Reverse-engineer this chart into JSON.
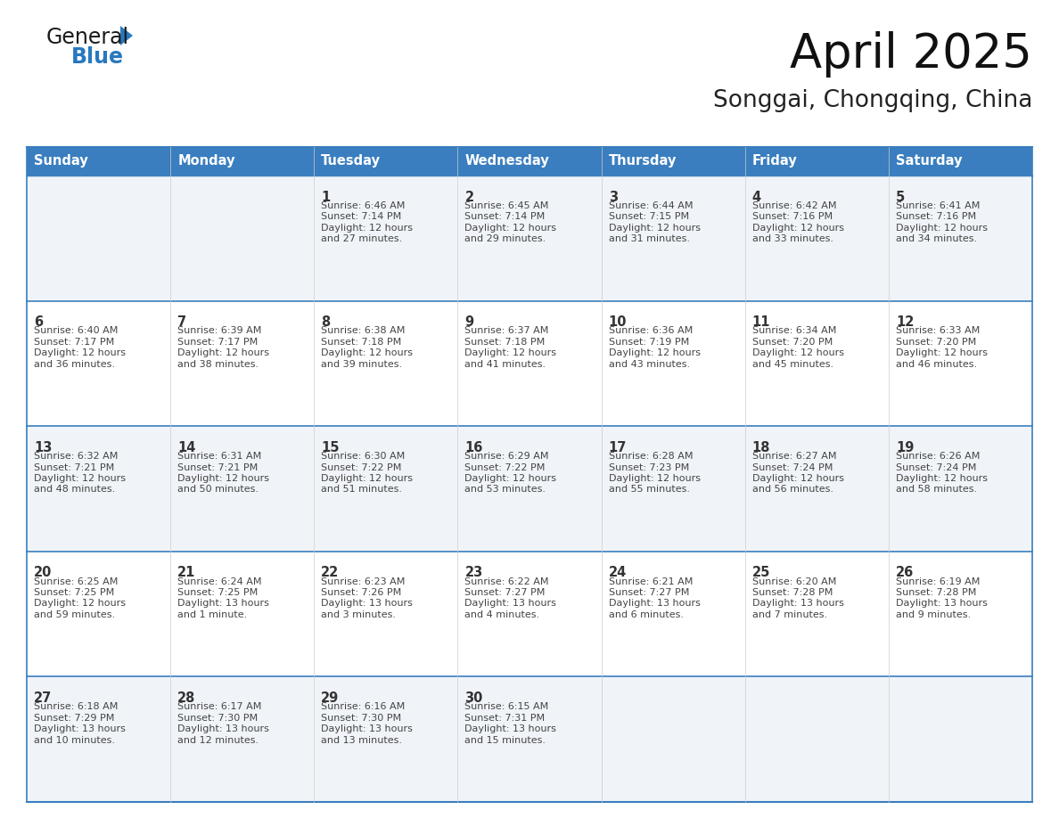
{
  "title": "April 2025",
  "subtitle": "Songgai, Chongqing, China",
  "header_bg_color": "#3a7ebf",
  "header_text_color": "#ffffff",
  "row_bg_colors": [
    "#f0f4f8",
    "#ffffff"
  ],
  "border_color": "#3a7ebf",
  "text_color": "#444444",
  "day_num_color": "#333333",
  "day_headers": [
    "Sunday",
    "Monday",
    "Tuesday",
    "Wednesday",
    "Thursday",
    "Friday",
    "Saturday"
  ],
  "cells": [
    {
      "day": null,
      "sunrise": null,
      "sunset": null,
      "daylight": null
    },
    {
      "day": null,
      "sunrise": null,
      "sunset": null,
      "daylight": null
    },
    {
      "day": 1,
      "sunrise": "6:46 AM",
      "sunset": "7:14 PM",
      "daylight": "12 hours\nand 27 minutes."
    },
    {
      "day": 2,
      "sunrise": "6:45 AM",
      "sunset": "7:14 PM",
      "daylight": "12 hours\nand 29 minutes."
    },
    {
      "day": 3,
      "sunrise": "6:44 AM",
      "sunset": "7:15 PM",
      "daylight": "12 hours\nand 31 minutes."
    },
    {
      "day": 4,
      "sunrise": "6:42 AM",
      "sunset": "7:16 PM",
      "daylight": "12 hours\nand 33 minutes."
    },
    {
      "day": 5,
      "sunrise": "6:41 AM",
      "sunset": "7:16 PM",
      "daylight": "12 hours\nand 34 minutes."
    },
    {
      "day": 6,
      "sunrise": "6:40 AM",
      "sunset": "7:17 PM",
      "daylight": "12 hours\nand 36 minutes."
    },
    {
      "day": 7,
      "sunrise": "6:39 AM",
      "sunset": "7:17 PM",
      "daylight": "12 hours\nand 38 minutes."
    },
    {
      "day": 8,
      "sunrise": "6:38 AM",
      "sunset": "7:18 PM",
      "daylight": "12 hours\nand 39 minutes."
    },
    {
      "day": 9,
      "sunrise": "6:37 AM",
      "sunset": "7:18 PM",
      "daylight": "12 hours\nand 41 minutes."
    },
    {
      "day": 10,
      "sunrise": "6:36 AM",
      "sunset": "7:19 PM",
      "daylight": "12 hours\nand 43 minutes."
    },
    {
      "day": 11,
      "sunrise": "6:34 AM",
      "sunset": "7:20 PM",
      "daylight": "12 hours\nand 45 minutes."
    },
    {
      "day": 12,
      "sunrise": "6:33 AM",
      "sunset": "7:20 PM",
      "daylight": "12 hours\nand 46 minutes."
    },
    {
      "day": 13,
      "sunrise": "6:32 AM",
      "sunset": "7:21 PM",
      "daylight": "12 hours\nand 48 minutes."
    },
    {
      "day": 14,
      "sunrise": "6:31 AM",
      "sunset": "7:21 PM",
      "daylight": "12 hours\nand 50 minutes."
    },
    {
      "day": 15,
      "sunrise": "6:30 AM",
      "sunset": "7:22 PM",
      "daylight": "12 hours\nand 51 minutes."
    },
    {
      "day": 16,
      "sunrise": "6:29 AM",
      "sunset": "7:22 PM",
      "daylight": "12 hours\nand 53 minutes."
    },
    {
      "day": 17,
      "sunrise": "6:28 AM",
      "sunset": "7:23 PM",
      "daylight": "12 hours\nand 55 minutes."
    },
    {
      "day": 18,
      "sunrise": "6:27 AM",
      "sunset": "7:24 PM",
      "daylight": "12 hours\nand 56 minutes."
    },
    {
      "day": 19,
      "sunrise": "6:26 AM",
      "sunset": "7:24 PM",
      "daylight": "12 hours\nand 58 minutes."
    },
    {
      "day": 20,
      "sunrise": "6:25 AM",
      "sunset": "7:25 PM",
      "daylight": "12 hours\nand 59 minutes."
    },
    {
      "day": 21,
      "sunrise": "6:24 AM",
      "sunset": "7:25 PM",
      "daylight": "13 hours\nand 1 minute."
    },
    {
      "day": 22,
      "sunrise": "6:23 AM",
      "sunset": "7:26 PM",
      "daylight": "13 hours\nand 3 minutes."
    },
    {
      "day": 23,
      "sunrise": "6:22 AM",
      "sunset": "7:27 PM",
      "daylight": "13 hours\nand 4 minutes."
    },
    {
      "day": 24,
      "sunrise": "6:21 AM",
      "sunset": "7:27 PM",
      "daylight": "13 hours\nand 6 minutes."
    },
    {
      "day": 25,
      "sunrise": "6:20 AM",
      "sunset": "7:28 PM",
      "daylight": "13 hours\nand 7 minutes."
    },
    {
      "day": 26,
      "sunrise": "6:19 AM",
      "sunset": "7:28 PM",
      "daylight": "13 hours\nand 9 minutes."
    },
    {
      "day": 27,
      "sunrise": "6:18 AM",
      "sunset": "7:29 PM",
      "daylight": "13 hours\nand 10 minutes."
    },
    {
      "day": 28,
      "sunrise": "6:17 AM",
      "sunset": "7:30 PM",
      "daylight": "13 hours\nand 12 minutes."
    },
    {
      "day": 29,
      "sunrise": "6:16 AM",
      "sunset": "7:30 PM",
      "daylight": "13 hours\nand 13 minutes."
    },
    {
      "day": 30,
      "sunrise": "6:15 AM",
      "sunset": "7:31 PM",
      "daylight": "13 hours\nand 15 minutes."
    },
    {
      "day": null,
      "sunrise": null,
      "sunset": null,
      "daylight": null
    },
    {
      "day": null,
      "sunrise": null,
      "sunset": null,
      "daylight": null
    },
    {
      "day": null,
      "sunrise": null,
      "sunset": null,
      "daylight": null
    }
  ],
  "logo_text_general": "General",
  "logo_text_blue": "Blue",
  "logo_color_general": "#1a1a1a",
  "logo_color_blue": "#2878be",
  "logo_triangle_color": "#2878be",
  "fig_width": 11.88,
  "fig_height": 9.18,
  "dpi": 100
}
